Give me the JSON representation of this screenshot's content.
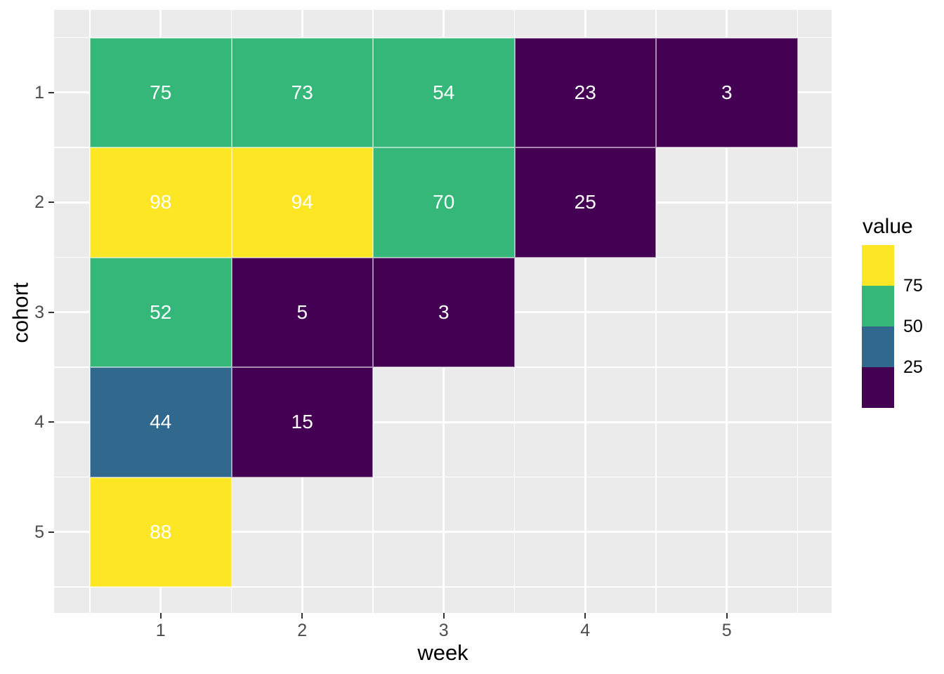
{
  "chart_data": {
    "type": "heatmap",
    "title": "",
    "xlabel": "week",
    "ylabel": "cohort",
    "x_ticks": [
      "1",
      "2",
      "3",
      "4",
      "5"
    ],
    "y_ticks": [
      "1",
      "2",
      "3",
      "4",
      "5"
    ],
    "x_range": [
      0.5,
      5.5
    ],
    "y_range": [
      0.5,
      5.5
    ],
    "grid": "on",
    "cells": [
      {
        "week": 1,
        "cohort": 1,
        "value": 75
      },
      {
        "week": 2,
        "cohort": 1,
        "value": 73
      },
      {
        "week": 3,
        "cohort": 1,
        "value": 54
      },
      {
        "week": 4,
        "cohort": 1,
        "value": 23
      },
      {
        "week": 5,
        "cohort": 1,
        "value": 3
      },
      {
        "week": 1,
        "cohort": 2,
        "value": 98
      },
      {
        "week": 2,
        "cohort": 2,
        "value": 94
      },
      {
        "week": 3,
        "cohort": 2,
        "value": 70
      },
      {
        "week": 4,
        "cohort": 2,
        "value": 25
      },
      {
        "week": 1,
        "cohort": 3,
        "value": 52
      },
      {
        "week": 2,
        "cohort": 3,
        "value": 5
      },
      {
        "week": 3,
        "cohort": 3,
        "value": 3
      },
      {
        "week": 1,
        "cohort": 4,
        "value": 44
      },
      {
        "week": 2,
        "cohort": 4,
        "value": 15
      },
      {
        "week": 1,
        "cohort": 5,
        "value": 88
      }
    ],
    "color_bins": [
      {
        "greater_than": 75,
        "color": "#FDE725"
      },
      {
        "greater_than": 50,
        "color": "#35B779"
      },
      {
        "greater_than": 25,
        "color": "#31688E"
      },
      {
        "greater_than": 0,
        "color": "#440154"
      }
    ],
    "legend": {
      "title": "value",
      "position": "right",
      "blocks": [
        {
          "color": "#FDE725",
          "boundary_label_below": "75"
        },
        {
          "color": "#35B779",
          "boundary_label_below": "50"
        },
        {
          "color": "#31688E",
          "boundary_label_below": "25"
        },
        {
          "color": "#440154",
          "boundary_label_below": ""
        }
      ]
    }
  },
  "colors": {
    "panel_background": "#EBEBEB",
    "gridline": "#FFFFFF",
    "tick_label": "#4D4D4D",
    "tick_mark": "#333333",
    "cell_text": "#FFFFFF",
    "axis_title": "#000000"
  }
}
